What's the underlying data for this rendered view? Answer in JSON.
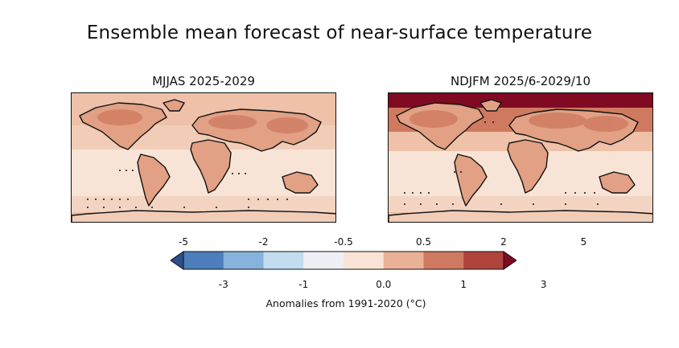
{
  "title": "Ensemble mean forecast of near-surface temperature",
  "panels": [
    {
      "title": "MJJAS 2025-2029"
    },
    {
      "title": "NDJFM 2025/6-2029/10"
    }
  ],
  "colorbar": {
    "label": "Anomalies from 1991-2020 (°C)",
    "ticks_upper": [
      "-5",
      "-2",
      "-0.5",
      "0.5",
      "2",
      "5"
    ],
    "ticks_lower": [
      "-3",
      "-1",
      "0.0",
      "1",
      "3"
    ],
    "colors": [
      "#2d4e8c",
      "#4d7ebd",
      "#86b2db",
      "#c3dcee",
      "#eef0f5",
      "#f8e4d6",
      "#e9b195",
      "#cf7a60",
      "#b0433b",
      "#800a22"
    ]
  },
  "map_colors": {
    "ocean_light": "#f8e4d6",
    "ocean_mid": "#eec1a8",
    "land_warm": "#e2a084",
    "land_hot": "#cf7a60",
    "polar_extreme": "#800a22"
  }
}
